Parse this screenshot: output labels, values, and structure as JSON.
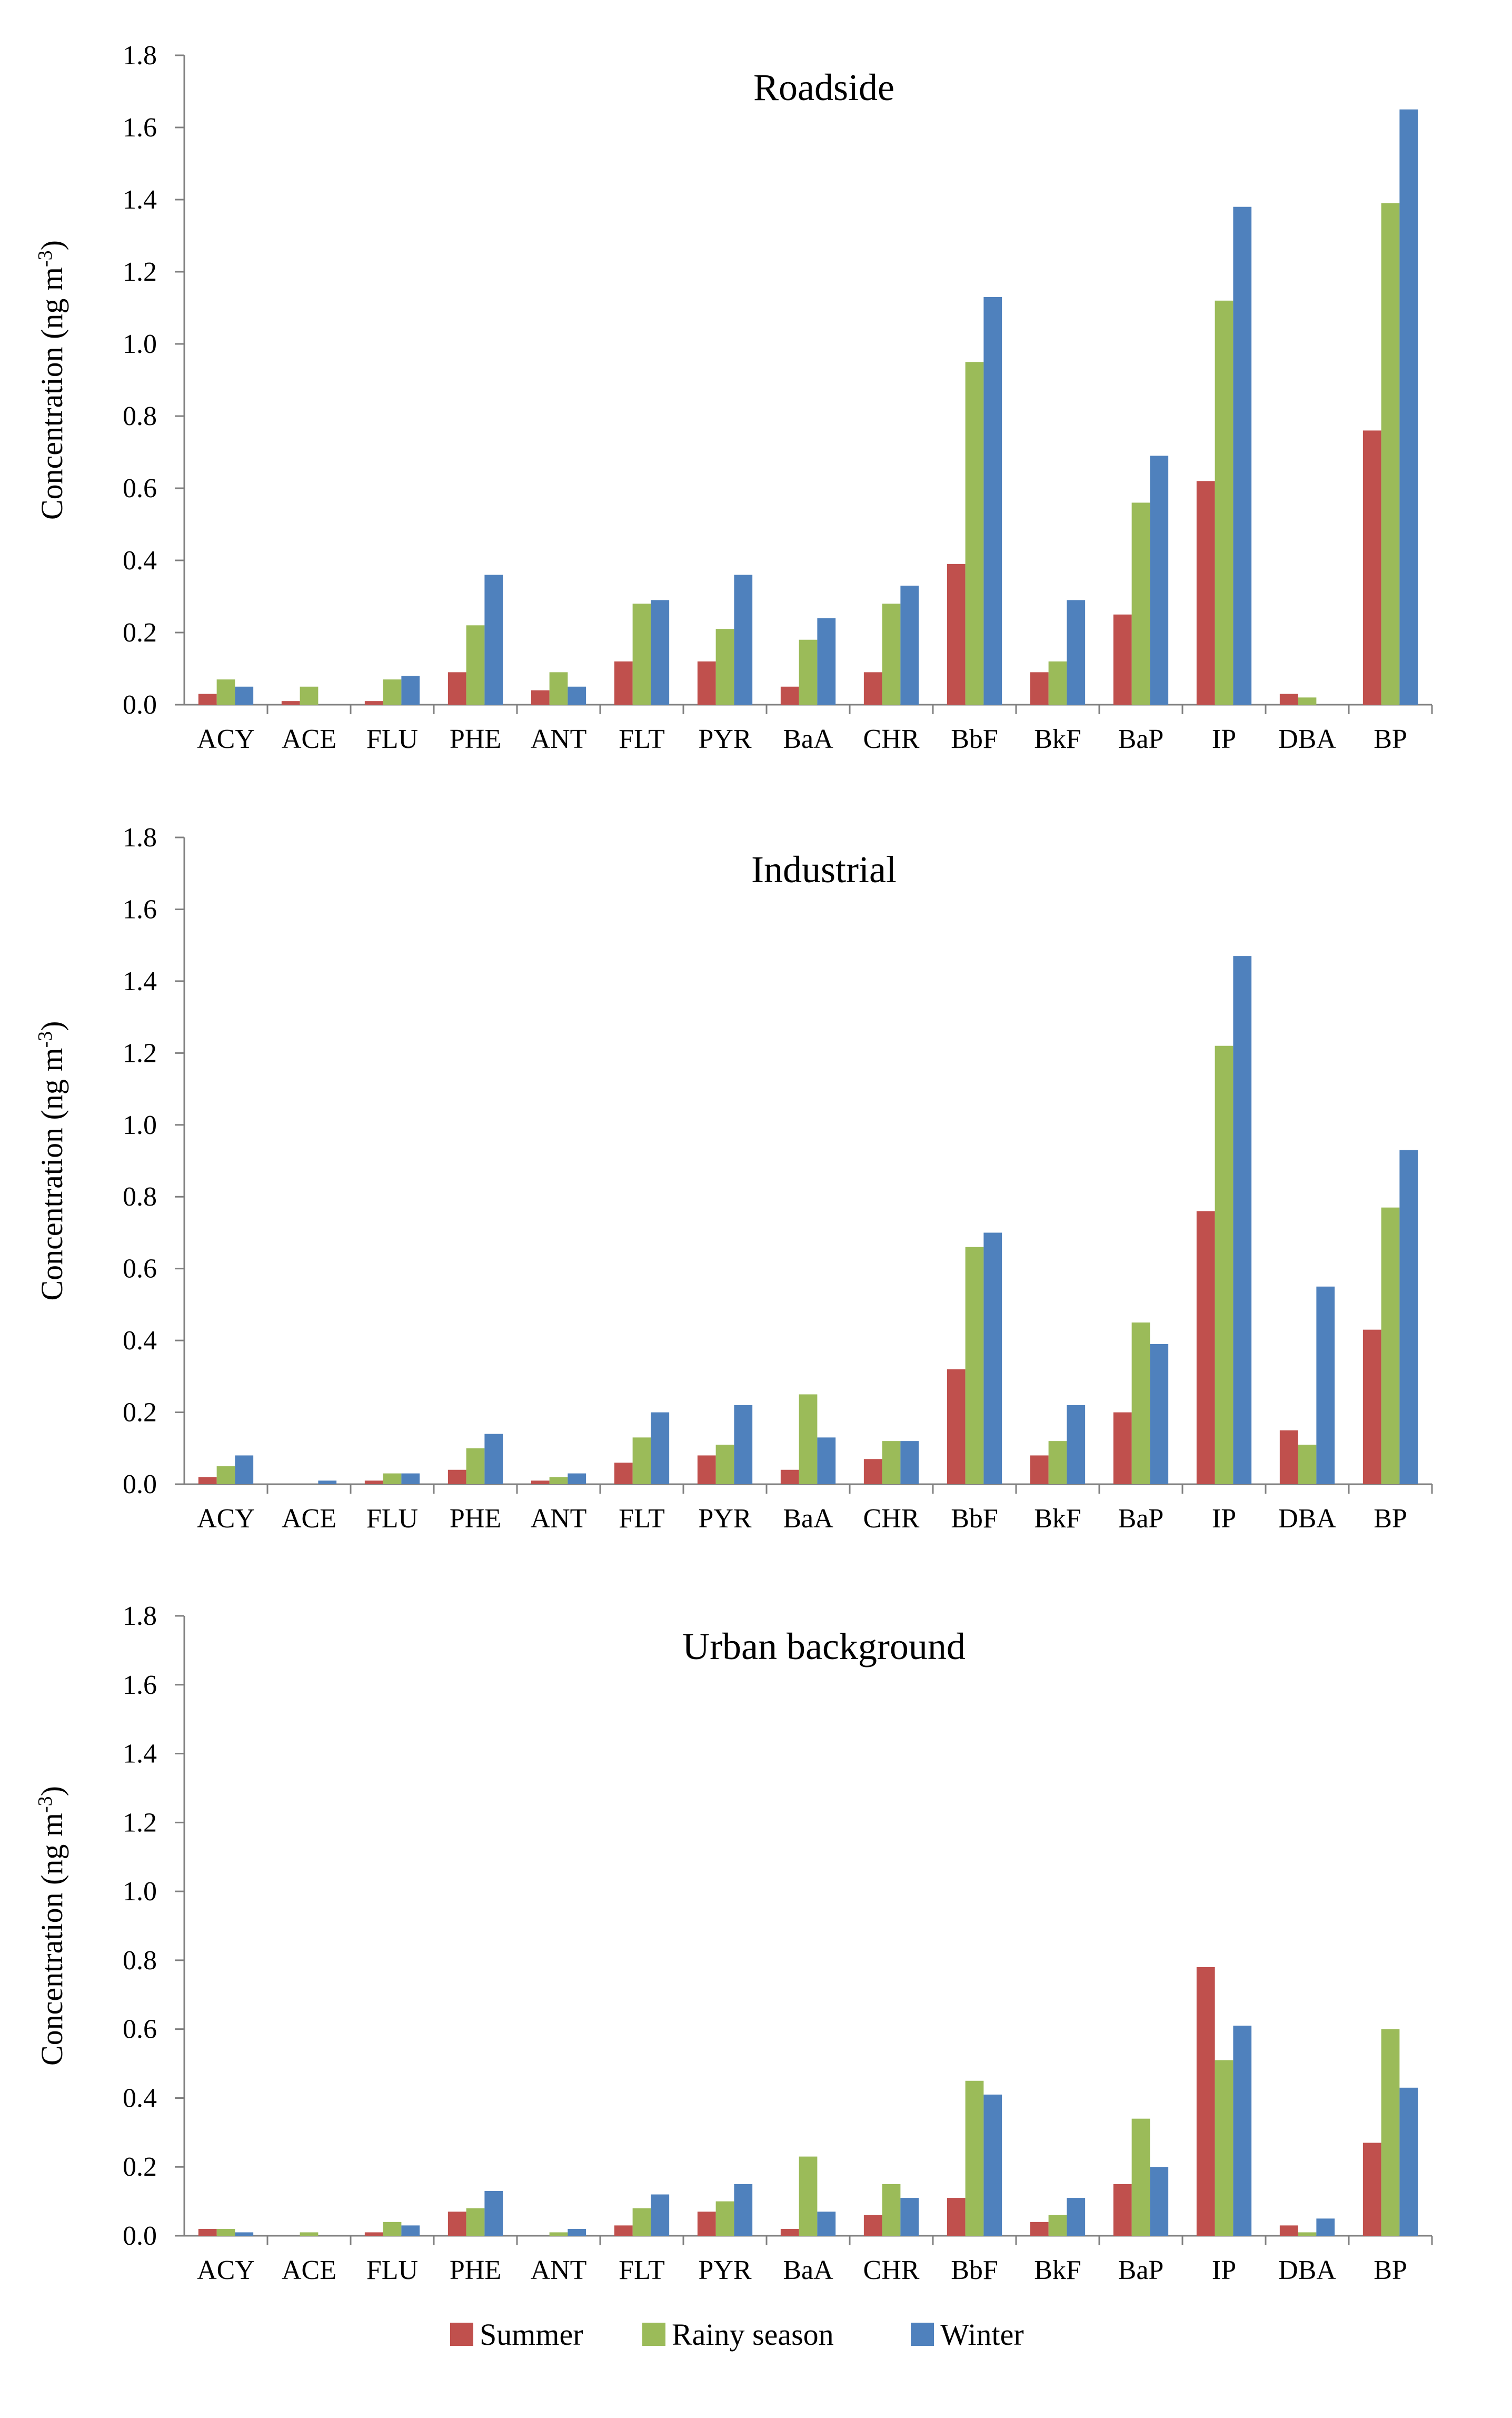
{
  "colors": {
    "summer": "#c0504d",
    "rainy": "#9bbb59",
    "winter": "#4f81bd"
  },
  "ylabel_prefix": "Concentration (ng m",
  "ylabel_sup": "-3",
  "ylabel_suffix": ")",
  "chart_data": [
    {
      "type": "bar",
      "title": "Roadside",
      "ylabel": "Concentration (ng m-3)",
      "ylim": [
        0,
        1.8
      ],
      "yticks": [
        "0.0",
        "0.2",
        "0.4",
        "0.6",
        "0.8",
        "1.0",
        "1.2",
        "1.4",
        "1.6",
        "1.8"
      ],
      "categories": [
        "ACY",
        "ACE",
        "FLU",
        "PHE",
        "ANT",
        "FLT",
        "PYR",
        "BaA",
        "CHR",
        "BbF",
        "BkF",
        "BaP",
        "IP",
        "DBA",
        "BP"
      ],
      "series": [
        {
          "name": "Summer",
          "values": [
            0.03,
            0.01,
            0.01,
            0.09,
            0.04,
            0.12,
            0.12,
            0.05,
            0.09,
            0.39,
            0.09,
            0.25,
            0.62,
            0.03,
            0.76
          ]
        },
        {
          "name": "Rainy season",
          "values": [
            0.07,
            0.05,
            0.07,
            0.22,
            0.09,
            0.28,
            0.21,
            0.18,
            0.28,
            0.95,
            0.12,
            0.56,
            1.12,
            0.02,
            1.39
          ]
        },
        {
          "name": "Winter",
          "values": [
            0.05,
            0.0,
            0.08,
            0.36,
            0.05,
            0.29,
            0.36,
            0.24,
            0.33,
            1.13,
            0.29,
            0.69,
            1.38,
            0.0,
            1.65
          ]
        }
      ]
    },
    {
      "type": "bar",
      "title": "Industrial",
      "ylabel": "Concentration (ng m-3)",
      "ylim": [
        0,
        1.8
      ],
      "yticks": [
        "0.0",
        "0.2",
        "0.4",
        "0.6",
        "0.8",
        "1.0",
        "1.2",
        "1.4",
        "1.6",
        "1.8"
      ],
      "categories": [
        "ACY",
        "ACE",
        "FLU",
        "PHE",
        "ANT",
        "FLT",
        "PYR",
        "BaA",
        "CHR",
        "BbF",
        "BkF",
        "BaP",
        "IP",
        "DBA",
        "BP"
      ],
      "series": [
        {
          "name": "Summer",
          "values": [
            0.02,
            0.0,
            0.01,
            0.04,
            0.01,
            0.06,
            0.08,
            0.04,
            0.07,
            0.32,
            0.08,
            0.2,
            0.76,
            0.15,
            0.43
          ]
        },
        {
          "name": "Rainy season",
          "values": [
            0.05,
            0.0,
            0.03,
            0.1,
            0.02,
            0.13,
            0.11,
            0.25,
            0.12,
            0.66,
            0.12,
            0.45,
            1.22,
            0.11,
            0.77
          ]
        },
        {
          "name": "Winter",
          "values": [
            0.08,
            0.01,
            0.03,
            0.14,
            0.03,
            0.2,
            0.22,
            0.13,
            0.12,
            0.7,
            0.22,
            0.39,
            1.47,
            0.55,
            0.93
          ]
        }
      ]
    },
    {
      "type": "bar",
      "title": "Urban background",
      "ylabel": "Concentration (ng m-3)",
      "ylim": [
        0,
        1.8
      ],
      "yticks": [
        "0.0",
        "0.2",
        "0.4",
        "0.6",
        "0.8",
        "1.0",
        "1.2",
        "1.4",
        "1.6",
        "1.8"
      ],
      "categories": [
        "ACY",
        "ACE",
        "FLU",
        "PHE",
        "ANT",
        "FLT",
        "PYR",
        "BaA",
        "CHR",
        "BbF",
        "BkF",
        "BaP",
        "IP",
        "DBA",
        "BP"
      ],
      "series": [
        {
          "name": "Summer",
          "values": [
            0.02,
            0.0,
            0.01,
            0.07,
            0.0,
            0.03,
            0.07,
            0.02,
            0.06,
            0.11,
            0.04,
            0.15,
            0.78,
            0.03,
            0.27
          ]
        },
        {
          "name": "Rainy season",
          "values": [
            0.02,
            0.01,
            0.04,
            0.08,
            0.01,
            0.08,
            0.1,
            0.23,
            0.15,
            0.45,
            0.06,
            0.34,
            0.51,
            0.01,
            0.6
          ]
        },
        {
          "name": "Winter",
          "values": [
            0.01,
            0.0,
            0.03,
            0.13,
            0.02,
            0.12,
            0.15,
            0.07,
            0.11,
            0.41,
            0.11,
            0.2,
            0.61,
            0.05,
            0.43
          ]
        }
      ]
    }
  ],
  "legend": [
    "Summer",
    "Rainy season",
    "Winter"
  ]
}
